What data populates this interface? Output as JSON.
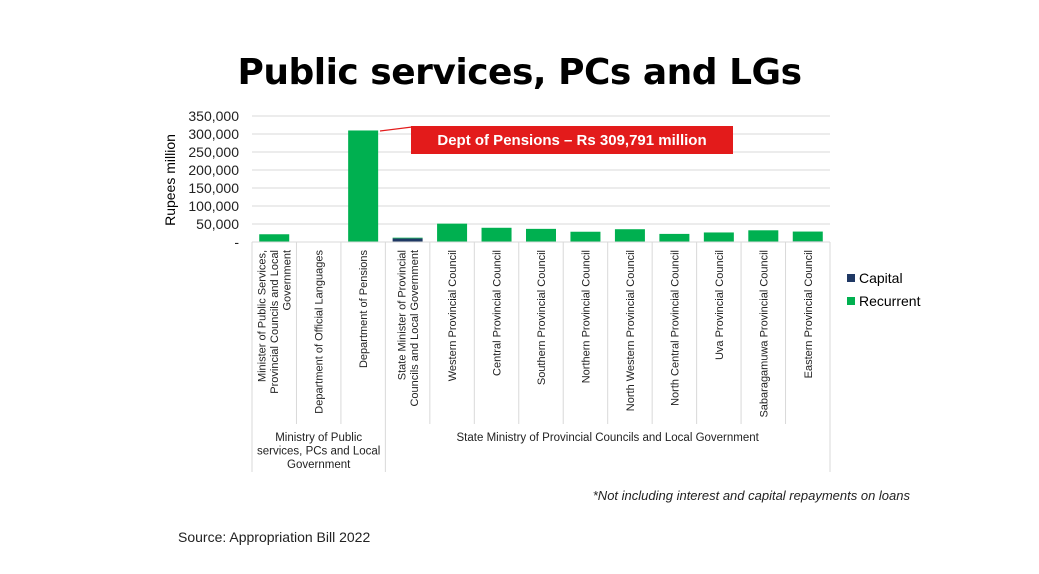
{
  "title": "Public services, PCs and LGs",
  "footnote": "*Not including interest and capital repayments on loans",
  "source": "Source: Appropriation Bill 2022",
  "callout": "Dept of Pensions – Rs 309,791 million",
  "colors": {
    "capital": "#1f3864",
    "recurrent": "#00b050",
    "callout": "#e31b1b",
    "grid": "#d9d9d9"
  },
  "chart_data": {
    "type": "bar",
    "stacked": true,
    "ylabel": "Rupees million",
    "ylim": [
      0,
      350000
    ],
    "yticks": [
      "-",
      "50,000",
      "100,000",
      "150,000",
      "200,000",
      "250,000",
      "300,000",
      "350,000"
    ],
    "grid": true,
    "legend_position": "right",
    "categories": [
      "Minister of Public Services, Provincial Councils and Local Government",
      "Department of Official Languages",
      "Department of Pensions",
      "State Minister of Provincial Councils and Local Government",
      "Western Provincial Council",
      "Central Provincial Council",
      "Southern Provincial Council",
      "Northern Provincial Council",
      "North Western Provincial Council",
      "North Central Provincial Council",
      "Uva Provincial Council",
      "Sabaragamuwa Provincial Council",
      "Eastern Provincial Council"
    ],
    "category_lines": [
      [
        "Minister of Public Services,",
        "Provincial Councils and Local",
        "Government"
      ],
      [
        "Department of Official Languages"
      ],
      [
        "Department of Pensions"
      ],
      [
        "State Minister of Provincial",
        "Councils and Local Government"
      ],
      [
        "Western Provincial Council"
      ],
      [
        "Central Provincial Council"
      ],
      [
        "Southern Provincial Council"
      ],
      [
        "Northern Provincial Council"
      ],
      [
        "North Western Provincial Council"
      ],
      [
        "North Central Provincial Council"
      ],
      [
        "Uva Provincial Council"
      ],
      [
        "Sabaragamuwa Provincial Council"
      ],
      [
        "Eastern Provincial Council"
      ]
    ],
    "groups": [
      {
        "label_lines": [
          "Ministry of Public",
          "services, PCs and Local",
          "Government"
        ],
        "count": 3
      },
      {
        "label_lines": [
          "State Ministry of Provincial Councils and Local Government"
        ],
        "count": 10
      }
    ],
    "series": [
      {
        "name": "Capital",
        "values": [
          500,
          200,
          300,
          10000,
          1000,
          500,
          500,
          500,
          500,
          500,
          500,
          500,
          2000
        ]
      },
      {
        "name": "Recurrent",
        "values": [
          21000,
          500,
          309500,
          2000,
          50000,
          39000,
          36000,
          28000,
          35000,
          22000,
          26000,
          32000,
          27000
        ]
      }
    ]
  }
}
